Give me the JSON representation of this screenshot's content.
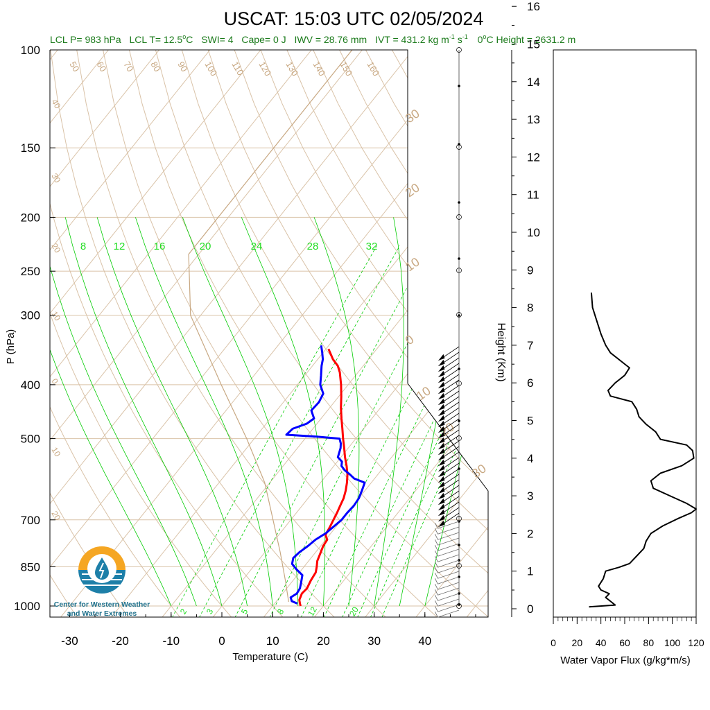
{
  "title": "USCAT: 15:03 UTC 02/05/2024",
  "info": {
    "lcl_p": "LCL P= 983 hPa",
    "lcl_t": "LCL T= 12.5",
    "lcl_t_unit": "C",
    "swi": "SWI= 4",
    "cape": "Cape= 0 J",
    "iwv": "IWV = 28.76 mm",
    "ivt": "IVT = 431.2 kg m",
    "ivt_exp1": "-1",
    "ivt_s": " s",
    "ivt_exp2": "-1",
    "zero_height": "0",
    "zero_height_rest": "C Height = 2631.2 m",
    "degree": "o"
  },
  "logo": {
    "line1": "Center for Western Weather",
    "line2": "and Water Extremes",
    "colors": {
      "sun": "#f5a623",
      "water": "#1d7fa8"
    }
  },
  "colors": {
    "temperature": "#ff0000",
    "dewpoint": "#0000ff",
    "isotherm": "#d9c2a7",
    "mixing_ratio": "#00cc00",
    "parcel": "#c8a882",
    "flux": "#000000"
  },
  "chart_data": [
    {
      "type": "line",
      "title": "USCAT: 15:03 UTC 02/05/2024",
      "xlabel": "Temperature (C)",
      "ylabel": "P (hPa)",
      "y2label": "Height (Km)",
      "log_y": true,
      "xlim": [
        -35,
        50
      ],
      "ylim": [
        1050,
        100
      ],
      "x_ticks": [
        -30,
        -20,
        -10,
        0,
        10,
        20,
        30,
        40
      ],
      "x_tick_labels": [
        "-30",
        "-20",
        "-10",
        "0",
        "10",
        "20",
        "30",
        "40"
      ],
      "y_ticks": [
        100,
        150,
        200,
        250,
        300,
        400,
        500,
        700,
        850,
        1000
      ],
      "y_tick_labels": [
        "100",
        "150",
        "200",
        "250",
        "300",
        "400",
        "500",
        "700",
        "850",
        "1000"
      ],
      "height_ticks": [
        0,
        1,
        2,
        3,
        4,
        5,
        6,
        7,
        8,
        9,
        10,
        11,
        12,
        13,
        14,
        15,
        16
      ],
      "height_tick_labels": [
        "0",
        "1",
        "2",
        "3",
        "4",
        "5",
        "6",
        "7",
        "8",
        "9",
        "10",
        "11",
        "12",
        "13",
        "14",
        "15",
        "16"
      ],
      "isotherm_labels": [
        "50",
        "60",
        "70",
        "80",
        "90",
        "100",
        "110",
        "120",
        "130",
        "140",
        "150",
        "160"
      ],
      "left_labels": [
        "40",
        "30",
        "20",
        "10",
        "0",
        "10",
        "20"
      ],
      "right_labels": [
        "30",
        "20",
        "10",
        "0",
        "10",
        "20",
        "30"
      ],
      "mixing_ratio_top_labels": [
        "8",
        "12",
        "16",
        "20",
        "24",
        "28",
        "32"
      ],
      "mixing_ratio_bottom_labels": [
        "2",
        "3",
        "5",
        "8",
        "12",
        "20"
      ],
      "series": [
        {
          "key": "temperature",
          "points": [
            [
              1000,
              15.5
            ],
            [
              990,
              15.0
            ],
            [
              975,
              14.3
            ],
            [
              960,
              14.0
            ],
            [
              950,
              13.8
            ],
            [
              930,
              14.0
            ],
            [
              900,
              13.5
            ],
            [
              870,
              13.2
            ],
            [
              850,
              12.5
            ],
            [
              830,
              11.7
            ],
            [
              800,
              11.0
            ],
            [
              780,
              10.5
            ],
            [
              760,
              10.3
            ],
            [
              745,
              9.2
            ],
            [
              720,
              8.8
            ],
            [
              700,
              8.4
            ],
            [
              680,
              8.0
            ],
            [
              660,
              7.5
            ],
            [
              640,
              7.0
            ],
            [
              620,
              6.2
            ],
            [
              600,
              5.2
            ],
            [
              580,
              4.0
            ],
            [
              560,
              2.5
            ],
            [
              540,
              0.8
            ],
            [
              520,
              -0.8
            ],
            [
              500,
              -2.5
            ],
            [
              480,
              -4.2
            ],
            [
              460,
              -6.0
            ],
            [
              440,
              -7.8
            ],
            [
              420,
              -9.5
            ],
            [
              400,
              -11.4
            ],
            [
              380,
              -13.6
            ],
            [
              370,
              -15.0
            ],
            [
              360,
              -17.0
            ],
            [
              345,
              -19.5
            ]
          ]
        },
        {
          "key": "dewpoint",
          "points": [
            [
              990,
              14.5
            ],
            [
              980,
              13.0
            ],
            [
              965,
              12.2
            ],
            [
              950,
              12.8
            ],
            [
              930,
              12.6
            ],
            [
              910,
              12.0
            ],
            [
              880,
              11.0
            ],
            [
              860,
              9.0
            ],
            [
              840,
              7.2
            ],
            [
              820,
              6.5
            ],
            [
              800,
              6.8
            ],
            [
              780,
              7.5
            ],
            [
              760,
              8.0
            ],
            [
              740,
              9.0
            ],
            [
              720,
              9.5
            ],
            [
              700,
              10.0
            ],
            [
              680,
              10.0
            ],
            [
              660,
              10.2
            ],
            [
              640,
              10.0
            ],
            [
              620,
              9.4
            ],
            [
              600,
              8.7
            ],
            [
              590,
              6.0
            ],
            [
              580,
              4.5
            ],
            [
              570,
              2.8
            ],
            [
              560,
              1.5
            ],
            [
              550,
              0.9
            ],
            [
              540,
              -0.6
            ],
            [
              520,
              -1.5
            ],
            [
              510,
              -2.2
            ],
            [
              500,
              -3.2
            ],
            [
              496,
              -8.0
            ],
            [
              492,
              -14.3
            ],
            [
              480,
              -14.0
            ],
            [
              470,
              -12.0
            ],
            [
              460,
              -11.4
            ],
            [
              445,
              -13.2
            ],
            [
              430,
              -13.0
            ],
            [
              415,
              -13.5
            ],
            [
              400,
              -15.5
            ],
            [
              385,
              -16.8
            ],
            [
              370,
              -18.2
            ],
            [
              360,
              -19.0
            ],
            [
              350,
              -20.2
            ],
            [
              340,
              -21.5
            ]
          ]
        },
        {
          "key": "parcel",
          "points": [
            [
              983,
              12.5
            ],
            [
              900,
              8.5
            ],
            [
              800,
              3.0
            ],
            [
              700,
              -3.5
            ],
            [
              600,
              -11.0
            ],
            [
              500,
              -21.5
            ],
            [
              400,
              -35.0
            ],
            [
              300,
              -52.0
            ],
            [
              233,
              -62.0
            ],
            [
              180,
              -62.0
            ],
            [
              140,
              -62.0
            ],
            [
              100,
              -62.0
            ]
          ]
        }
      ]
    },
    {
      "type": "line",
      "xlabel": "Water Vapor Flux (g/kg*m/s)",
      "xlim": [
        0,
        120
      ],
      "ylim": [
        0,
        16.5
      ],
      "x_ticks": [
        0,
        20,
        40,
        60,
        80,
        100,
        120
      ],
      "x_tick_labels": [
        "0",
        "20",
        "40",
        "60",
        "80",
        "100",
        "120"
      ],
      "series": [
        {
          "key": "flux",
          "points": [
            [
              0.05,
              30
            ],
            [
              0.1,
              52
            ],
            [
              0.2,
              48
            ],
            [
              0.3,
              44
            ],
            [
              0.4,
              47
            ],
            [
              0.5,
              40
            ],
            [
              0.6,
              38
            ],
            [
              0.8,
              42
            ],
            [
              1.0,
              44
            ],
            [
              1.1,
              55
            ],
            [
              1.2,
              64
            ],
            [
              1.4,
              70
            ],
            [
              1.6,
              76
            ],
            [
              1.8,
              78
            ],
            [
              2.0,
              82
            ],
            [
              2.2,
              92
            ],
            [
              2.4,
              105
            ],
            [
              2.55,
              116
            ],
            [
              2.65,
              120
            ],
            [
              2.8,
              112
            ],
            [
              3.0,
              98
            ],
            [
              3.2,
              84
            ],
            [
              3.4,
              82
            ],
            [
              3.6,
              90
            ],
            [
              3.8,
              108
            ],
            [
              4.0,
              118
            ],
            [
              4.2,
              117
            ],
            [
              4.35,
              112
            ],
            [
              4.5,
              90
            ],
            [
              4.7,
              86
            ],
            [
              4.9,
              78
            ],
            [
              5.1,
              72
            ],
            [
              5.3,
              70
            ],
            [
              5.5,
              66
            ],
            [
              5.65,
              48
            ],
            [
              5.8,
              46
            ],
            [
              6.0,
              52
            ],
            [
              6.2,
              60
            ],
            [
              6.4,
              64
            ],
            [
              6.6,
              56
            ],
            [
              6.8,
              48
            ],
            [
              7.0,
              44
            ],
            [
              7.3,
              40
            ],
            [
              7.6,
              37
            ],
            [
              8.0,
              33
            ],
            [
              8.4,
              32
            ]
          ]
        }
      ]
    }
  ]
}
